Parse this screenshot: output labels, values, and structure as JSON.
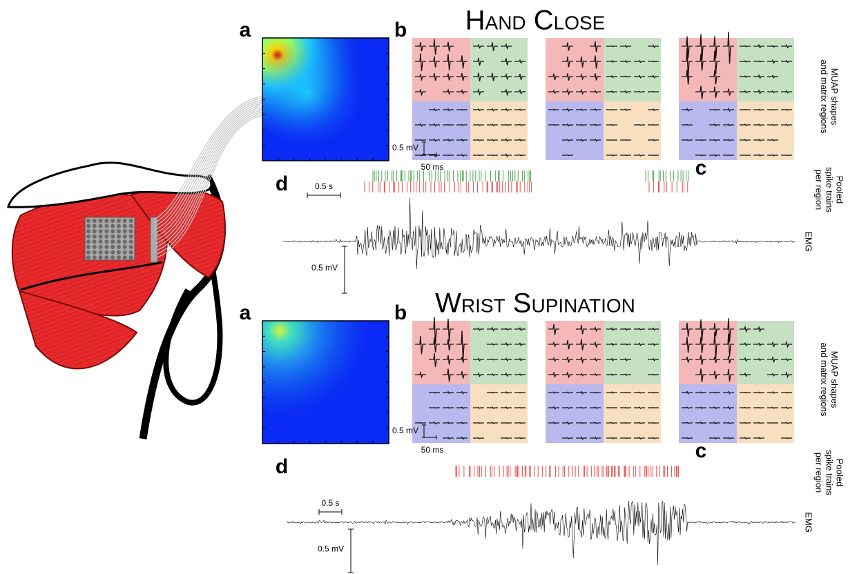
{
  "panels": [
    {
      "title": "Hand Close",
      "labels": {
        "a": "a",
        "b": "b",
        "c": "c",
        "d": "d"
      },
      "muap_scale": {
        "amplitude": "0.5 mV",
        "time": "50 ms"
      },
      "emg_scale": {
        "time": "0.5 s",
        "amplitude": "0.5 mV"
      },
      "side_labels": {
        "muap": [
          "MUAP shapes",
          "and matrix regions"
        ],
        "spikes": [
          "Pooled",
          "spike trains",
          "per region"
        ],
        "emg": "EMG"
      }
    },
    {
      "title": "Wrist Supination",
      "labels": {
        "a": "a",
        "b": "b",
        "c": "c",
        "d": "d"
      },
      "muap_scale": {
        "amplitude": "0.5 mV",
        "time": "50 ms"
      },
      "emg_scale": {
        "time": "0.5 s",
        "amplitude": "0.5 mV"
      },
      "side_labels": {
        "muap": [
          "MUAP shapes",
          "and matrix regions"
        ],
        "spikes": [
          "Pooled",
          "spike trains",
          "per region"
        ],
        "emg": "EMG"
      }
    }
  ]
}
